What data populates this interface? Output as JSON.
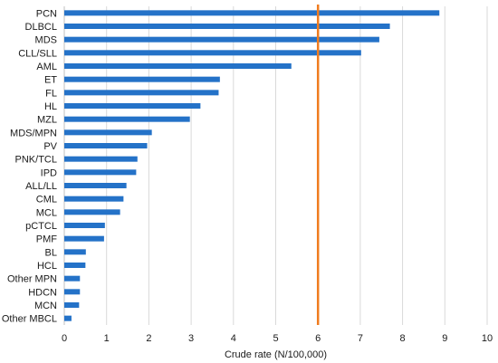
{
  "chart_data": {
    "type": "bar",
    "orientation": "horizontal",
    "categories": [
      "PCN",
      "DLBCL",
      "MDS",
      "CLL/SLL",
      "AML",
      "ET",
      "FL",
      "HL",
      "MZL",
      "MDS/MPN",
      "PV",
      "PNK/TCL",
      "IPD",
      "ALL/LL",
      "CML",
      "MCL",
      "pCTCL",
      "PMF",
      "BL",
      "HCL",
      "Other MPN",
      "HDCN",
      "MCN",
      "Other MBCL"
    ],
    "values": [
      8.87,
      7.7,
      7.45,
      7.02,
      5.37,
      3.68,
      3.65,
      3.22,
      2.97,
      2.07,
      1.96,
      1.73,
      1.7,
      1.47,
      1.4,
      1.32,
      0.96,
      0.94,
      0.51,
      0.5,
      0.37,
      0.37,
      0.35,
      0.17
    ],
    "title": "",
    "xlabel": "Crude rate (N/100,000)",
    "ylabel": "",
    "xlim": [
      0,
      10
    ],
    "xticks": [
      "0",
      "1",
      "2",
      "3",
      "4",
      "5",
      "6",
      "7",
      "8",
      "9",
      "10"
    ],
    "reference_line": {
      "value": 6,
      "color": "#f07c1f"
    },
    "bar_color": "#2472c8",
    "grid": "vertical",
    "legend": "none"
  }
}
